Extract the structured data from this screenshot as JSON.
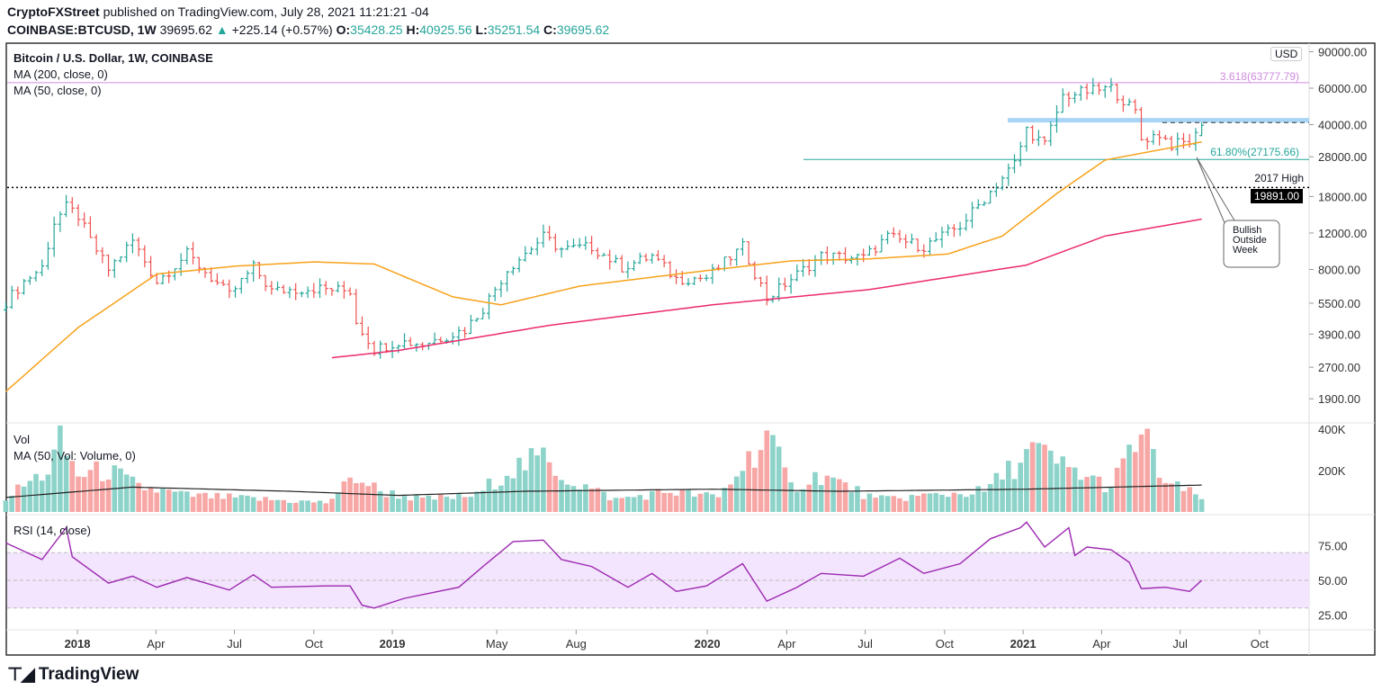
{
  "header": {
    "author": "CryptoFXStreet",
    "published": "published on TradingView.com, July 28, 2021 11:21:21 -04",
    "symbol": "COINBASE:BTCUSD, 1W",
    "last": "39695.62",
    "change": "+225.14 (+0.57%)",
    "o_label": "O:",
    "o": "35428.25",
    "h_label": "H:",
    "h": "40925.56",
    "l_label": "L:",
    "l": "35251.54",
    "c_label": "C:",
    "c": "39695.62"
  },
  "legend": {
    "title": "Bitcoin / U.S. Dollar, 1W, COINBASE",
    "ma200": "MA (200, close, 0)",
    "ma50": "MA (50, close, 0)",
    "vol": "Vol",
    "vol_ma": "MA (50, Vol: Volume, 0)",
    "rsi": "RSI (14, close)"
  },
  "currency": "USD",
  "annotations": {
    "fib_3618": "3.618(63777.79)",
    "fib_618": "61.80%(27175.66)",
    "high_2017": "2017 High",
    "high_2017_price": "19891.00",
    "callout": [
      "Bullish",
      "Outside",
      "Week"
    ]
  },
  "brand": "TradingView",
  "colors": {
    "up": "#26a69a",
    "down": "#ef5350",
    "vol_up": "#8dd3ca",
    "vol_down": "#f7a7a5",
    "ma50": "#f7a21b",
    "ma200": "#ec2b6b",
    "rsi": "#9c27b0",
    "rsi_band": "#f3e5fd",
    "fib": "#d08be0",
    "resistance": "#a8d4f5"
  },
  "chart_data": {
    "type": "ohlc-bar",
    "price_axis": {
      "scale": "log",
      "ticks": [
        90000,
        60000,
        40000,
        28000,
        18000,
        12000,
        8000,
        5500,
        3900,
        2700,
        1900
      ],
      "tick_labels": [
        "90000.00",
        "60000.00",
        "40000.00",
        "28000.00",
        "18000.00",
        "12000.00",
        "8000.00",
        "5500.00",
        "3900.00",
        "2700.00",
        "1900.00"
      ]
    },
    "time_axis": {
      "ticks": [
        [
          "2017-12-31",
          "2018"
        ],
        [
          "2018-04-01",
          "Apr"
        ],
        [
          "2018-07-01",
          "Jul"
        ],
        [
          "2018-10-01",
          "Oct"
        ],
        [
          "2018-12-31",
          "2019"
        ],
        [
          "2019-05-01",
          "May"
        ],
        [
          "2019-08-01",
          "Aug"
        ],
        [
          "2019-12-31",
          "2020"
        ],
        [
          "2020-04-01",
          "Apr"
        ],
        [
          "2020-07-01",
          "Jul"
        ],
        [
          "2020-10-01",
          "Oct"
        ],
        [
          "2020-12-31",
          "2021"
        ],
        [
          "2021-04-01",
          "Apr"
        ],
        [
          "2021-07-01",
          "Jul"
        ],
        [
          "2021-10-01",
          "Oct"
        ]
      ]
    },
    "close_path": [
      [
        "2017-10-09",
        5600
      ],
      [
        "2017-10-30",
        7000
      ],
      [
        "2017-11-20",
        8200
      ],
      [
        "2017-12-04",
        13500
      ],
      [
        "2017-12-18",
        16000
      ],
      [
        "2018-01-01",
        14500
      ],
      [
        "2018-01-15",
        11000
      ],
      [
        "2018-02-05",
        8000
      ],
      [
        "2018-03-05",
        11000
      ],
      [
        "2018-04-02",
        7000
      ],
      [
        "2018-05-07",
        9500
      ],
      [
        "2018-06-25",
        6000
      ],
      [
        "2018-07-23",
        8200
      ],
      [
        "2018-08-13",
        6300
      ],
      [
        "2018-10-01",
        6500
      ],
      [
        "2018-11-12",
        6300
      ],
      [
        "2018-11-19",
        4500
      ],
      [
        "2018-12-10",
        3300
      ],
      [
        "2019-01-07",
        3600
      ],
      [
        "2019-02-04",
        3500
      ],
      [
        "2019-03-25",
        4100
      ],
      [
        "2019-04-15",
        5200
      ],
      [
        "2019-05-13",
        8000
      ],
      [
        "2019-06-24",
        11500
      ],
      [
        "2019-07-15",
        10000
      ],
      [
        "2019-08-19",
        10300
      ],
      [
        "2019-09-23",
        8200
      ],
      [
        "2019-10-28",
        9300
      ],
      [
        "2019-11-25",
        7200
      ],
      [
        "2019-12-30",
        7300
      ],
      [
        "2020-02-10",
        10300
      ],
      [
        "2020-03-09",
        5800
      ],
      [
        "2020-04-06",
        7200
      ],
      [
        "2020-05-11",
        9300
      ],
      [
        "2020-06-29",
        9100
      ],
      [
        "2020-07-27",
        11500
      ],
      [
        "2020-09-07",
        10300
      ],
      [
        "2020-10-19",
        13000
      ],
      [
        "2020-11-23",
        19000
      ],
      [
        "2020-12-21",
        26000
      ],
      [
        "2021-01-04",
        38000
      ],
      [
        "2021-01-25",
        32000
      ],
      [
        "2021-02-15",
        55000
      ],
      [
        "2021-03-15",
        58000
      ],
      [
        "2021-04-12",
        60000
      ],
      [
        "2021-05-10",
        46000
      ],
      [
        "2021-05-17",
        34000
      ],
      [
        "2021-06-07",
        36000
      ],
      [
        "2021-06-21",
        32000
      ],
      [
        "2021-07-12",
        33000
      ],
      [
        "2021-07-19",
        35428.25
      ],
      [
        "2021-07-26",
        39695.62
      ]
    ],
    "last_bar": {
      "date": "2021-07-26",
      "open": 35428.25,
      "high": 40925.56,
      "low": 35251.54,
      "close": 39695.62
    },
    "ma50": [
      [
        "2017-10-09",
        2060
      ],
      [
        "2018-01-01",
        4200
      ],
      [
        "2018-04-02",
        7600
      ],
      [
        "2018-07-02",
        8300
      ],
      [
        "2018-10-01",
        8700
      ],
      [
        "2018-12-10",
        8500
      ],
      [
        "2019-03-11",
        5900
      ],
      [
        "2019-05-06",
        5400
      ],
      [
        "2019-08-05",
        6650
      ],
      [
        "2019-12-30",
        7900
      ],
      [
        "2020-04-06",
        8800
      ],
      [
        "2020-07-06",
        9000
      ],
      [
        "2020-10-05",
        9500
      ],
      [
        "2020-12-07",
        11600
      ],
      [
        "2021-02-08",
        18600
      ],
      [
        "2021-04-05",
        27000
      ],
      [
        "2021-07-26",
        33000
      ]
    ],
    "ma200": [
      [
        "2018-10-22",
        3000
      ],
      [
        "2019-01-07",
        3250
      ],
      [
        "2019-07-01",
        4300
      ],
      [
        "2020-01-06",
        5400
      ],
      [
        "2020-07-06",
        6400
      ],
      [
        "2021-01-04",
        8400
      ],
      [
        "2021-04-05",
        11600
      ],
      [
        "2021-07-26",
        14000
      ]
    ],
    "levels": {
      "fib_3618": 63777.79,
      "fib_618": 27175.66,
      "high_2017": 19891.0,
      "resistance": 42000
    },
    "volume": {
      "axis_ticks": [
        "400K",
        "200K"
      ],
      "path_k": [
        [
          "2017-10-09",
          70
        ],
        [
          "2017-11-27",
          200
        ],
        [
          "2017-12-11",
          330
        ],
        [
          "2018-01-01",
          180
        ],
        [
          "2018-02-05",
          200
        ],
        [
          "2018-03-12",
          120
        ],
        [
          "2018-05-07",
          80
        ],
        [
          "2018-08-06",
          60
        ],
        [
          "2018-10-15",
          45
        ],
        [
          "2018-11-19",
          170
        ],
        [
          "2018-12-17",
          100
        ],
        [
          "2019-02-04",
          60
        ],
        [
          "2019-04-08",
          80
        ],
        [
          "2019-05-13",
          200
        ],
        [
          "2019-06-24",
          260
        ],
        [
          "2019-07-22",
          160
        ],
        [
          "2019-09-16",
          60
        ],
        [
          "2019-11-18",
          100
        ],
        [
          "2020-01-13",
          70
        ],
        [
          "2020-03-09",
          370
        ],
        [
          "2020-04-06",
          120
        ],
        [
          "2020-05-11",
          180
        ],
        [
          "2020-07-13",
          60
        ],
        [
          "2020-09-14",
          80
        ],
        [
          "2020-11-16",
          100
        ],
        [
          "2021-01-11",
          300
        ],
        [
          "2021-02-15",
          220
        ],
        [
          "2021-04-12",
          120
        ],
        [
          "2021-05-17",
          380
        ],
        [
          "2021-06-14",
          140
        ],
        [
          "2021-07-26",
          70
        ]
      ],
      "ma_k": [
        [
          "2017-10-09",
          70
        ],
        [
          "2018-03-05",
          120
        ],
        [
          "2018-09-03",
          100
        ],
        [
          "2019-01-07",
          80
        ],
        [
          "2019-06-03",
          100
        ],
        [
          "2020-01-06",
          110
        ],
        [
          "2020-06-01",
          100
        ],
        [
          "2021-01-04",
          110
        ],
        [
          "2021-07-26",
          130
        ]
      ]
    },
    "rsi": {
      "axis_ticks": [
        "75.00",
        "50.00",
        "25.00"
      ],
      "band": [
        30,
        70
      ],
      "path": [
        [
          "2017-10-09",
          77
        ],
        [
          "2017-11-20",
          65
        ],
        [
          "2017-12-18",
          88
        ],
        [
          "2017-12-25",
          67
        ],
        [
          "2018-02-05",
          48
        ],
        [
          "2018-03-05",
          53
        ],
        [
          "2018-04-02",
          45
        ],
        [
          "2018-05-07",
          52
        ],
        [
          "2018-06-25",
          43
        ],
        [
          "2018-07-23",
          54
        ],
        [
          "2018-08-13",
          45
        ],
        [
          "2018-10-15",
          46
        ],
        [
          "2018-11-12",
          46
        ],
        [
          "2018-11-26",
          32
        ],
        [
          "2018-12-10",
          30
        ],
        [
          "2019-01-14",
          37
        ],
        [
          "2019-03-18",
          45
        ],
        [
          "2019-04-15",
          60
        ],
        [
          "2019-05-20",
          78
        ],
        [
          "2019-06-24",
          79
        ],
        [
          "2019-07-15",
          65
        ],
        [
          "2019-08-19",
          60
        ],
        [
          "2019-09-30",
          45
        ],
        [
          "2019-10-28",
          55
        ],
        [
          "2019-11-25",
          42
        ],
        [
          "2019-12-30",
          46
        ],
        [
          "2020-02-10",
          62
        ],
        [
          "2020-03-09",
          35
        ],
        [
          "2020-04-13",
          45
        ],
        [
          "2020-05-11",
          55
        ],
        [
          "2020-06-29",
          53
        ],
        [
          "2020-08-10",
          66
        ],
        [
          "2020-09-07",
          55
        ],
        [
          "2020-10-19",
          62
        ],
        [
          "2020-11-23",
          80
        ],
        [
          "2020-12-28",
          88
        ],
        [
          "2021-01-04",
          92
        ],
        [
          "2021-01-25",
          74
        ],
        [
          "2021-02-22",
          88
        ],
        [
          "2021-03-01",
          68
        ],
        [
          "2021-03-15",
          74
        ],
        [
          "2021-04-12",
          72
        ],
        [
          "2021-05-03",
          63
        ],
        [
          "2021-05-17",
          44
        ],
        [
          "2021-06-14",
          45
        ],
        [
          "2021-07-12",
          42
        ],
        [
          "2021-07-26",
          50
        ]
      ]
    }
  }
}
